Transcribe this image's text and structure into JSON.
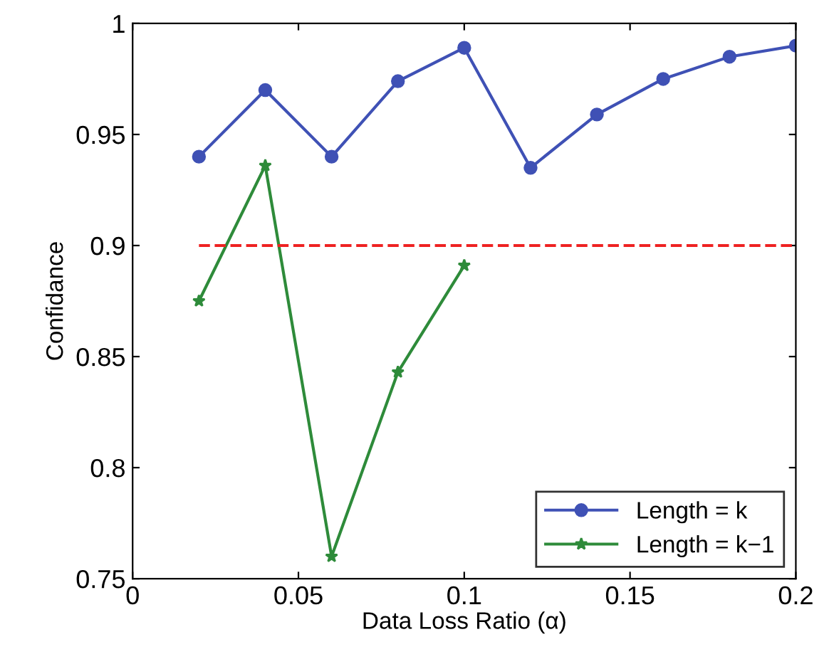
{
  "chart_data": {
    "type": "line",
    "xlabel": "Data Loss Ratio (α)",
    "ylabel": "Confidance",
    "xlim": [
      0,
      0.2
    ],
    "xticks": [
      0,
      0.05,
      0.1,
      0.15,
      0.2
    ],
    "ylim": [
      0.75,
      1
    ],
    "yticks": [
      0.75,
      0.8,
      0.85,
      0.9,
      0.95,
      1
    ],
    "grid": false,
    "legend": "bottom right",
    "series": [
      {
        "name": "Length = k",
        "color": "#3f51b5",
        "marker": "circle",
        "line_style": "solid",
        "x": [
          0.02,
          0.04,
          0.06,
          0.08,
          0.1,
          0.12,
          0.14,
          0.16,
          0.18,
          0.2
        ],
        "values": [
          0.94,
          0.97,
          0.94,
          0.974,
          0.989,
          0.935,
          0.959,
          0.975,
          0.985,
          0.99
        ]
      },
      {
        "name": "Length = k−1",
        "color": "#2e8b3a",
        "marker": "star",
        "line_style": "solid",
        "x": [
          0.02,
          0.04,
          0.06,
          0.08,
          0.1
        ],
        "values": [
          0.875,
          0.936,
          0.76,
          0.843,
          0.891
        ]
      },
      {
        "color": "#ee2222",
        "marker": "none",
        "line_style": "dashed",
        "x": [
          0.02,
          0.2
        ],
        "values": [
          0.9,
          0.9
        ]
      }
    ]
  }
}
